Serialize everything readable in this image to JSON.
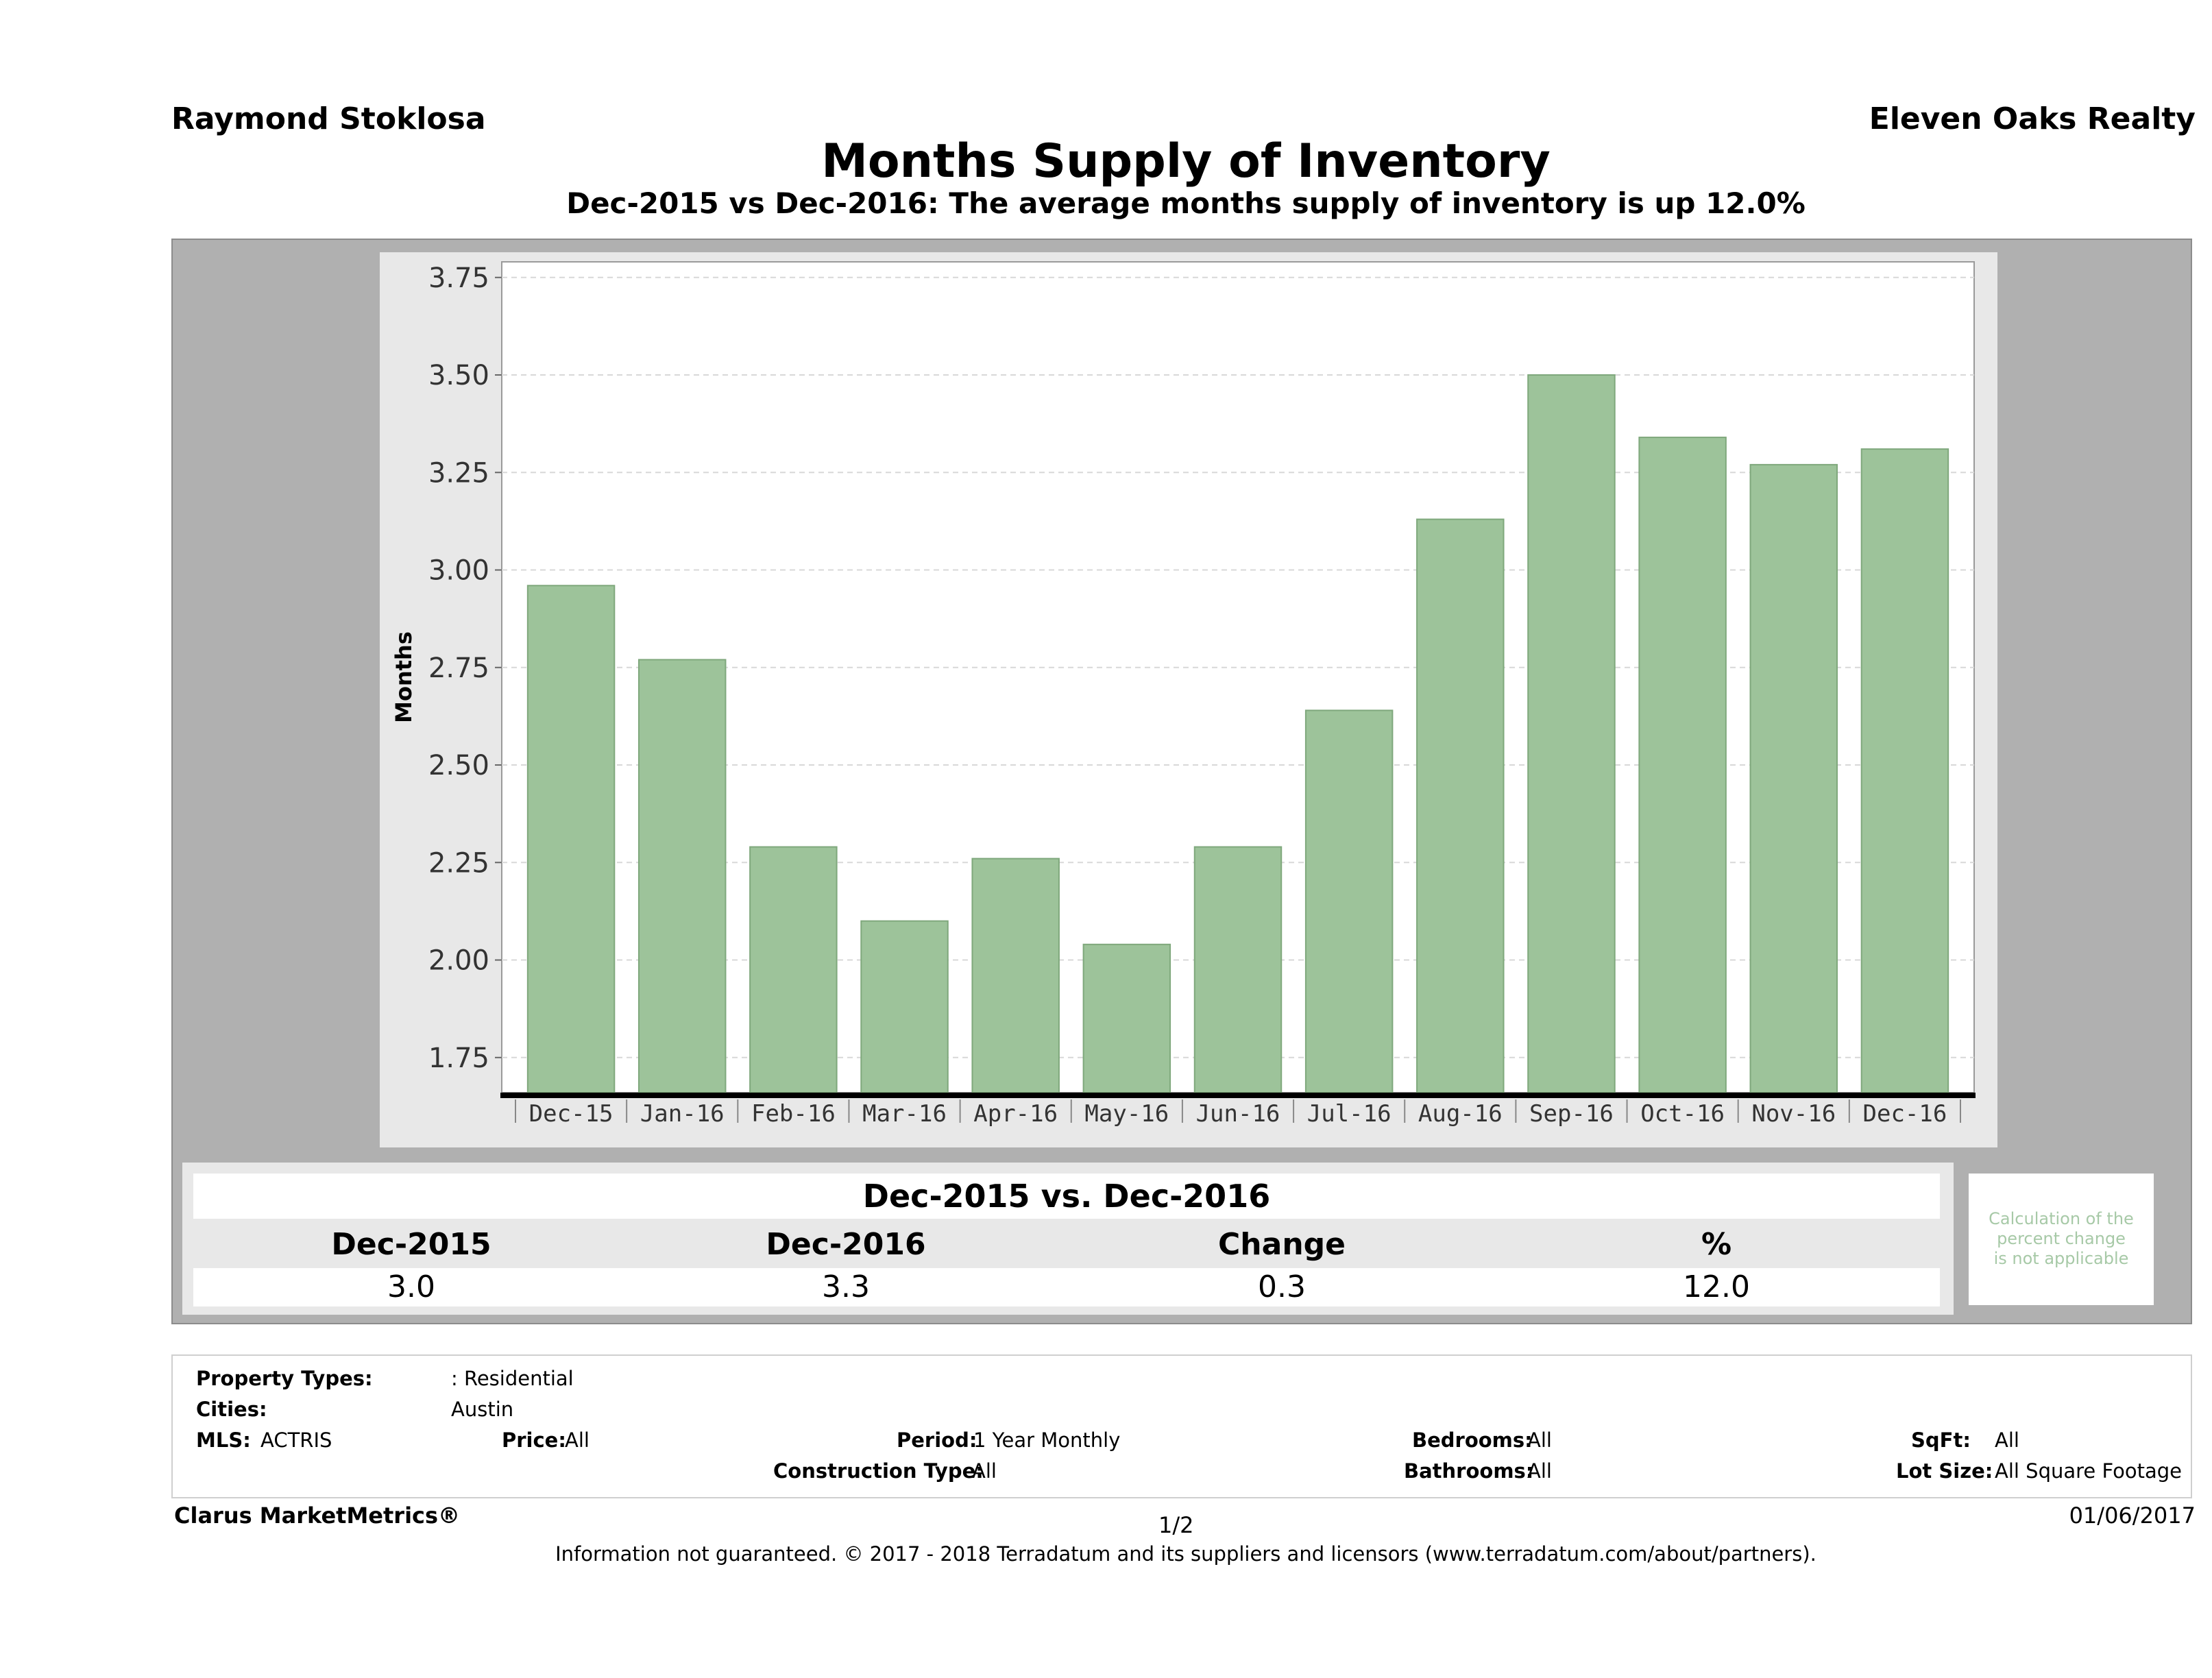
{
  "header": {
    "agent": "Raymond Stoklosa",
    "brokerage": "Eleven Oaks Realty",
    "title": "Months Supply of Inventory",
    "subtitle": "Dec-2015 vs Dec-2016: The average months supply of inventory is up 12.0%"
  },
  "chart_data": {
    "type": "bar",
    "categories": [
      "Dec-15",
      "Jan-16",
      "Feb-16",
      "Mar-16",
      "Apr-16",
      "May-16",
      "Jun-16",
      "Jul-16",
      "Aug-16",
      "Sep-16",
      "Oct-16",
      "Nov-16",
      "Dec-16"
    ],
    "values": [
      2.96,
      2.77,
      2.29,
      2.1,
      2.26,
      2.04,
      2.29,
      2.64,
      3.13,
      3.5,
      3.34,
      3.27,
      3.31
    ],
    "title": "",
    "xlabel": "",
    "ylabel": "Months",
    "ylim": [
      1.66,
      3.79
    ],
    "yticks": [
      "1.75",
      "2.00",
      "2.25",
      "2.50",
      "2.75",
      "3.00",
      "3.25",
      "3.50",
      "3.75"
    ],
    "grid": true,
    "bar_color": "#9dc39a",
    "bar_edge_color": "#7fa87c"
  },
  "comparison": {
    "title": "Dec-2015 vs. Dec-2016",
    "headers": [
      "Dec-2015",
      "Dec-2016",
      "Change",
      "%"
    ],
    "values": [
      "3.0",
      "3.3",
      "0.3",
      "12.0"
    ],
    "note": "Calculation of the\npercent change\nis not applicable"
  },
  "criteria": {
    "property_types_label": "Property Types:",
    "property_types_value": ": Residential",
    "cities_label": "Cities:",
    "cities_value": "Austin",
    "mls_label": "MLS:",
    "mls_value": "ACTRIS",
    "price_label": "Price:",
    "price_value": "All",
    "period_label": "Period:",
    "period_value": "1 Year Monthly",
    "bedrooms_label": "Bedrooms:",
    "bedrooms_value": "All",
    "sqft_label": "SqFt:",
    "sqft_value": "All",
    "construction_label": "Construction Type:",
    "construction_value": "All",
    "bathrooms_label": "Bathrooms:",
    "bathrooms_value": "All",
    "lotsize_label": "Lot Size:",
    "lotsize_value": "All Square Footage"
  },
  "footer": {
    "product": "Clarus MarketMetrics®",
    "page": "1/2",
    "date": "01/06/2017",
    "disclaimer": "Information not guaranteed. © 2017 - 2018 Terradatum and its suppliers and licensors (www.terradatum.com/about/partners)."
  }
}
